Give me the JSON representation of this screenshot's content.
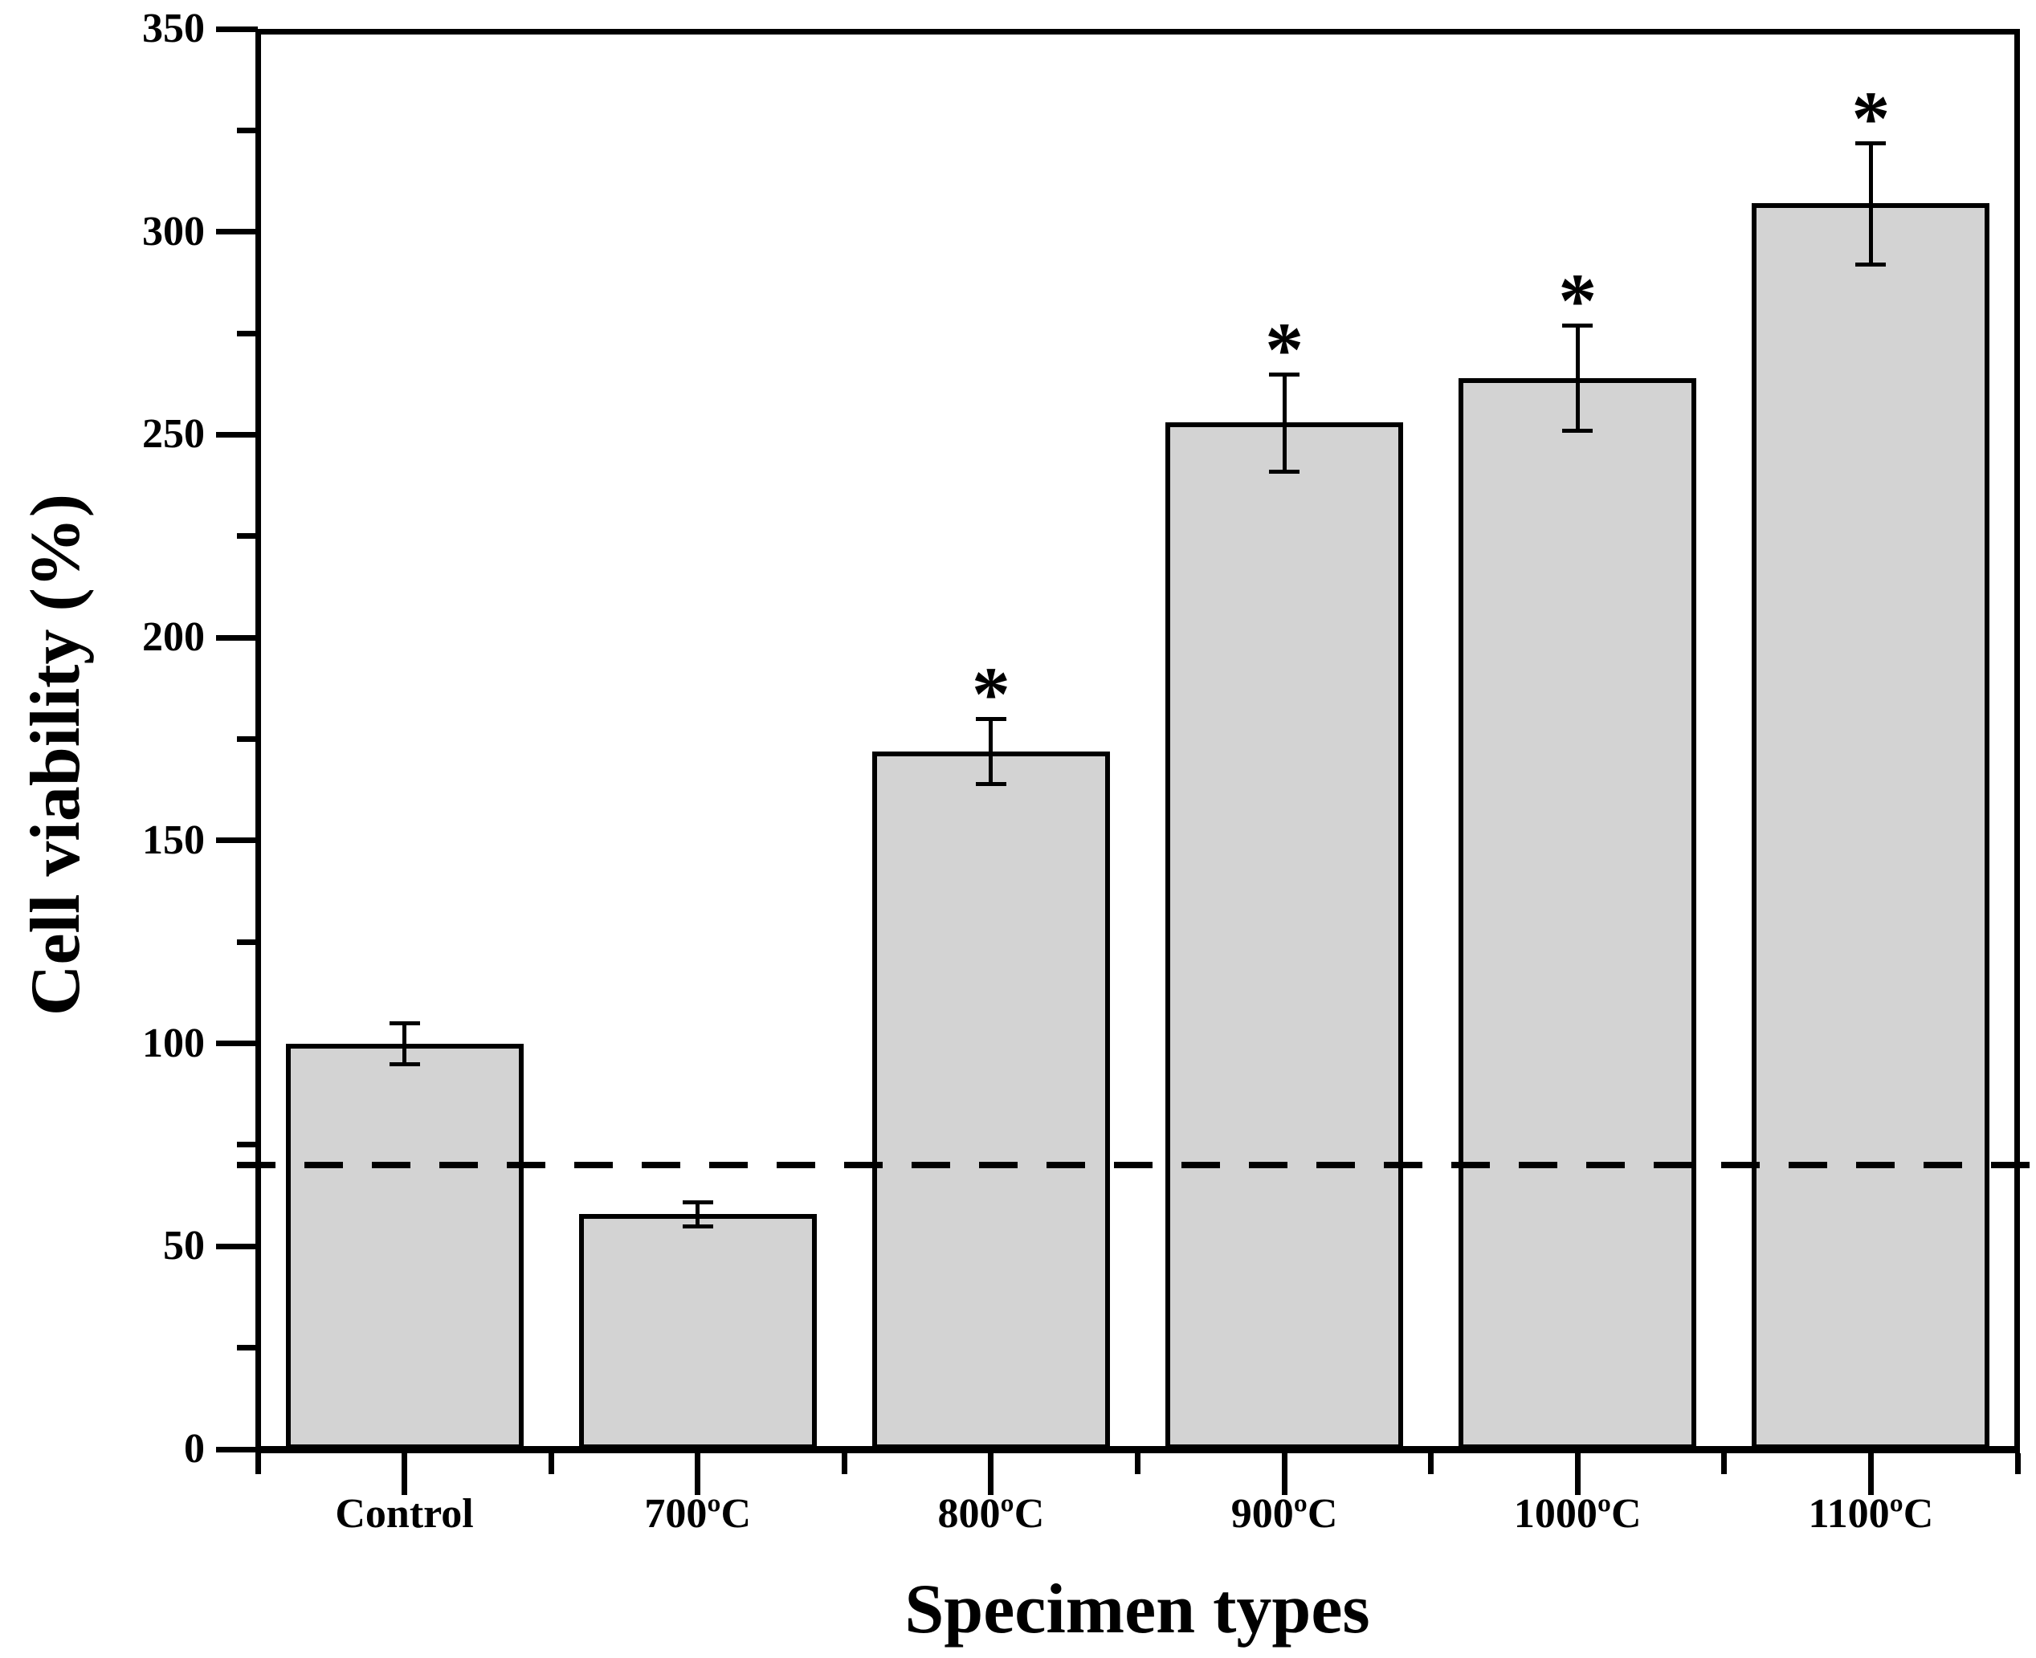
{
  "chart_data": {
    "type": "bar",
    "title": "",
    "xlabel": "Specimen types",
    "ylabel": "Cell viability (%)",
    "categories": [
      "Control",
      "700ºC",
      "800ºC",
      "900ºC",
      "1000ºC",
      "1100ºC"
    ],
    "values": [
      100,
      58,
      172,
      253,
      264,
      307
    ],
    "errors": [
      5,
      3,
      8,
      12,
      13,
      15
    ],
    "significance": [
      false,
      false,
      true,
      true,
      true,
      true
    ],
    "significance_marker": "*",
    "threshold_line": {
      "value": 70,
      "style": "dashed"
    },
    "ylim": [
      0,
      350
    ],
    "y_major_step": 50,
    "y_minor_step": 25,
    "y_tick_labels": [
      "0",
      "50",
      "100",
      "150",
      "200",
      "250",
      "300",
      "350"
    ],
    "bar_fill_color": "#d3d3d3",
    "bar_border_color": "#000000",
    "axis_color": "#000000",
    "grid": false,
    "legend": "none"
  }
}
